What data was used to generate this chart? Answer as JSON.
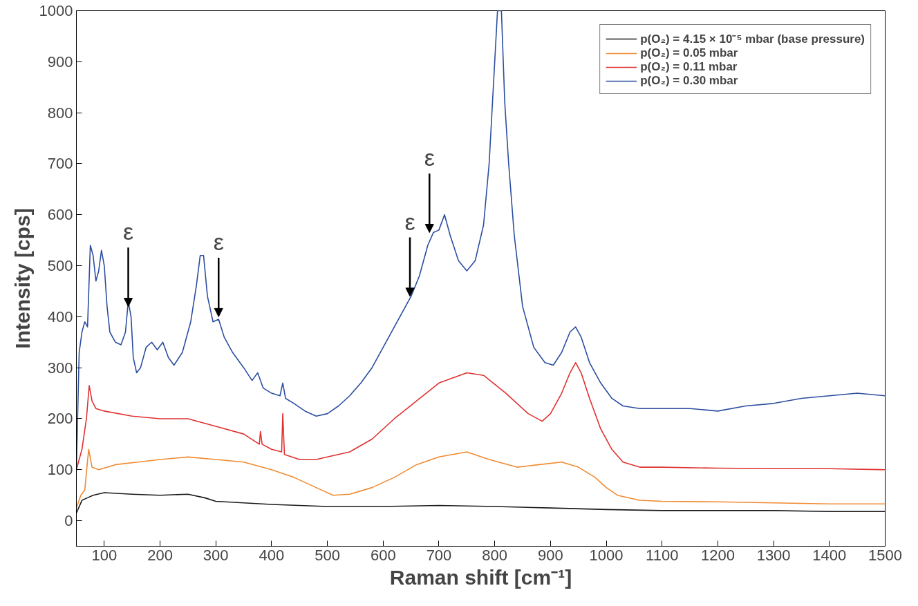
{
  "chart_data": {
    "type": "line",
    "xlabel": "Raman shift [cm⁻¹]",
    "ylabel": "Intensity [cps]",
    "xlim": [
      50,
      1500
    ],
    "ylim": [
      -50,
      1000
    ],
    "xticks": [
      100,
      200,
      300,
      400,
      500,
      600,
      700,
      800,
      900,
      1000,
      1100,
      1200,
      1300,
      1400,
      1500
    ],
    "yticks": [
      0,
      100,
      200,
      300,
      400,
      500,
      600,
      700,
      800,
      900,
      1000
    ],
    "grid": false,
    "legend": "top right",
    "line_style": "solid",
    "marker": "none",
    "annotations": [
      {
        "text": "ε",
        "x": 143,
        "y": 420
      },
      {
        "text": "ε",
        "x": 305,
        "y": 400
      },
      {
        "text": "ε",
        "x": 648,
        "y": 440
      },
      {
        "text": "ε",
        "x": 683,
        "y": 565
      }
    ],
    "series": [
      {
        "name": "p(O₂) = 4.15 × 10⁻⁵ mbar (base pressure)",
        "color": "#1a1a1a",
        "x": [
          50,
          60,
          70,
          80,
          100,
          150,
          200,
          250,
          280,
          300,
          350,
          400,
          500,
          600,
          700,
          800,
          900,
          1000,
          1100,
          1200,
          1300,
          1400,
          1500
        ],
        "values": [
          15,
          40,
          45,
          50,
          55,
          52,
          50,
          52,
          45,
          38,
          35,
          32,
          28,
          28,
          30,
          28,
          25,
          22,
          20,
          20,
          20,
          18,
          18
        ]
      },
      {
        "name": "p(O₂) = 0.05 mbar",
        "color": "#f08a30",
        "x": [
          50,
          58,
          65,
          72,
          78,
          90,
          120,
          160,
          200,
          250,
          300,
          350,
          400,
          440,
          480,
          510,
          540,
          580,
          620,
          660,
          700,
          750,
          790,
          840,
          880,
          920,
          950,
          980,
          1000,
          1020,
          1060,
          1100,
          1200,
          1300,
          1400,
          1500
        ],
        "values": [
          25,
          50,
          60,
          140,
          105,
          100,
          110,
          115,
          120,
          125,
          120,
          115,
          100,
          85,
          65,
          50,
          52,
          65,
          85,
          110,
          125,
          135,
          120,
          105,
          110,
          115,
          105,
          85,
          65,
          50,
          40,
          38,
          37,
          35,
          33,
          33
        ]
      },
      {
        "name": "p(O₂) = 0.11 mbar",
        "color": "#e03030",
        "x": [
          50,
          60,
          68,
          73,
          78,
          85,
          100,
          150,
          200,
          250,
          300,
          350,
          378,
          380,
          383,
          400,
          418,
          420,
          423,
          450,
          480,
          500,
          540,
          580,
          620,
          660,
          700,
          750,
          780,
          820,
          860,
          885,
          900,
          920,
          935,
          945,
          955,
          970,
          990,
          1010,
          1030,
          1060,
          1100,
          1200,
          1300,
          1400,
          1500
        ],
        "values": [
          100,
          140,
          200,
          265,
          235,
          220,
          215,
          205,
          200,
          200,
          185,
          170,
          150,
          175,
          150,
          140,
          135,
          210,
          130,
          120,
          120,
          125,
          135,
          160,
          200,
          235,
          270,
          290,
          285,
          250,
          210,
          195,
          210,
          250,
          290,
          310,
          290,
          240,
          180,
          140,
          115,
          105,
          105,
          103,
          102,
          102,
          100
        ]
      },
      {
        "name": "p(O₂) = 0.30 mbar",
        "color": "#2b4ea0",
        "x": [
          50,
          55,
          60,
          65,
          70,
          75,
          80,
          85,
          90,
          95,
          100,
          105,
          110,
          120,
          130,
          138,
          143,
          148,
          152,
          158,
          165,
          175,
          185,
          195,
          205,
          215,
          225,
          240,
          255,
          265,
          272,
          278,
          285,
          295,
          305,
          315,
          330,
          350,
          365,
          375,
          385,
          400,
          415,
          420,
          425,
          440,
          460,
          480,
          500,
          520,
          540,
          560,
          580,
          600,
          620,
          640,
          650,
          665,
          680,
          690,
          700,
          710,
          720,
          735,
          750,
          765,
          780,
          790,
          800,
          805,
          812,
          818,
          825,
          835,
          850,
          870,
          890,
          905,
          920,
          935,
          945,
          955,
          970,
          990,
          1010,
          1030,
          1060,
          1100,
          1150,
          1200,
          1250,
          1300,
          1350,
          1400,
          1450,
          1500
        ],
        "values": [
          100,
          330,
          370,
          390,
          380,
          540,
          520,
          470,
          490,
          530,
          500,
          420,
          370,
          350,
          345,
          370,
          430,
          400,
          320,
          290,
          300,
          340,
          350,
          335,
          350,
          320,
          305,
          330,
          390,
          460,
          520,
          520,
          440,
          390,
          395,
          360,
          330,
          300,
          275,
          290,
          260,
          250,
          245,
          270,
          240,
          230,
          215,
          205,
          210,
          225,
          245,
          270,
          300,
          340,
          380,
          420,
          440,
          480,
          540,
          565,
          570,
          600,
          560,
          510,
          490,
          510,
          580,
          700,
          900,
          1000,
          1000,
          820,
          700,
          560,
          420,
          340,
          310,
          305,
          330,
          370,
          380,
          360,
          310,
          270,
          240,
          225,
          220,
          220,
          220,
          215,
          225,
          230,
          240,
          245,
          250,
          245
        ]
      }
    ]
  }
}
